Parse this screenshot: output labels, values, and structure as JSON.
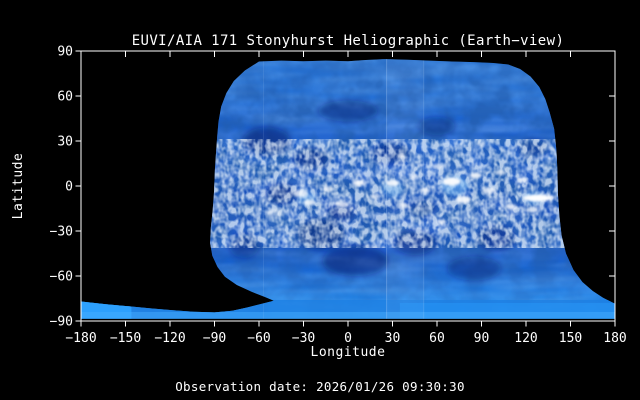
{
  "figure": {
    "title": "EUVI/AIA 171 Stonyhurst Heliographic (Earth−view)",
    "xlabel": "Longitude",
    "ylabel": "Latitude",
    "observation_date": "Observation date: 2026/01/26 09:30:30"
  },
  "colors": {
    "background": "#000000",
    "axis": "#ffffff",
    "text": "#ffffff",
    "map_base_blue": "#1a5ecd",
    "dark_blotch": "#041c6e",
    "bright_spot": "#ffffff",
    "glow": "#6db6f5",
    "speckle": "#e0f0ff",
    "streak": "#73b8ff",
    "south_band": "#1d80e4",
    "south_band_right": "#2694f5",
    "south_band_patch": "#2fa3ff",
    "south_band_bottom_row": "#49b0ff",
    "seam": "#c8e2ff"
  },
  "chart_data": {
    "type": "heatmap",
    "title": "EUVI/AIA 171 Stonyhurst Heliographic (Earth−view)",
    "xlabel": "Longitude",
    "ylabel": "Latitude",
    "xlim": [
      -180,
      180
    ],
    "ylim": [
      -90,
      90
    ],
    "x_ticks": [
      -180,
      -150,
      -120,
      -90,
      -60,
      -30,
      0,
      30,
      60,
      90,
      120,
      150,
      180
    ],
    "x_tick_labels": [
      "−180",
      "−150",
      "−120",
      "−90",
      "−60",
      "−30",
      "0",
      "30",
      "60",
      "90",
      "120",
      "150",
      "180"
    ],
    "y_ticks": [
      90,
      60,
      30,
      0,
      -30,
      -60,
      -90
    ],
    "y_tick_labels": [
      "90",
      "60",
      "30",
      "0",
      "−30",
      "−60",
      "−90"
    ],
    "observation_date": "2026/01/26 09:30:30",
    "description": "Blue-toned EUV 171 A synoptic intensity map of the solar corona in Stonyhurst heliographic coordinates; combined EUVI/AIA coverage spans roughly longitudes -90 to +142 deg at all latitudes plus a full-longitude south polar band below about -77 deg latitude; remaining corners are black (no data).",
    "coverage_outline_lonlat": [
      [
        -60,
        83
      ],
      [
        -45,
        83.6
      ],
      [
        -30,
        83.2
      ],
      [
        -15,
        83.6
      ],
      [
        0,
        83.2
      ],
      [
        12,
        84
      ],
      [
        25,
        84.6
      ],
      [
        40,
        84.2
      ],
      [
        55,
        83.6
      ],
      [
        70,
        83
      ],
      [
        85,
        82.6
      ],
      [
        98,
        82
      ],
      [
        108,
        81
      ],
      [
        116,
        78
      ],
      [
        123,
        73
      ],
      [
        129,
        66
      ],
      [
        133,
        58
      ],
      [
        136,
        49
      ],
      [
        139,
        38
      ],
      [
        140.5,
        24
      ],
      [
        141.2,
        10
      ],
      [
        141.5,
        -5
      ],
      [
        142.5,
        -20
      ],
      [
        144,
        -33
      ],
      [
        147,
        -45
      ],
      [
        152,
        -56
      ],
      [
        158,
        -64
      ],
      [
        165,
        -70
      ],
      [
        172,
        -74.5
      ],
      [
        178,
        -77.5
      ],
      [
        180,
        -78.5
      ],
      [
        180,
        -88.5
      ],
      [
        -180,
        -88.5
      ],
      [
        -180,
        -77
      ],
      [
        -163,
        -78.8
      ],
      [
        -148,
        -80.2
      ],
      [
        -133,
        -81.6
      ],
      [
        -118,
        -82.8
      ],
      [
        -104,
        -83.8
      ],
      [
        -90,
        -84.3
      ],
      [
        -78,
        -83.2
      ],
      [
        -68,
        -81
      ],
      [
        -58,
        -78.5
      ],
      [
        -50,
        -76.5
      ],
      [
        -56,
        -74
      ],
      [
        -65,
        -70.5
      ],
      [
        -75,
        -66
      ],
      [
        -83,
        -60.5
      ],
      [
        -88,
        -54
      ],
      [
        -91.5,
        -46.5
      ],
      [
        -93,
        -38
      ],
      [
        -92.5,
        -28
      ],
      [
        -91.2,
        -16
      ],
      [
        -90.3,
        -3
      ],
      [
        -89.8,
        10
      ],
      [
        -89,
        22
      ],
      [
        -88.2,
        33
      ],
      [
        -87.3,
        43
      ],
      [
        -85.5,
        53
      ],
      [
        -82,
        62
      ],
      [
        -77,
        70
      ],
      [
        -69.5,
        77
      ],
      [
        -60,
        83
      ]
    ],
    "seams": [
      {
        "lon": 26,
        "opacity": 0.28
      },
      {
        "lon": 51,
        "opacity": 0.18
      },
      {
        "lon": -57,
        "opacity": 0.1
      }
    ],
    "seam_strip": {
      "lon_from": 26,
      "lon_to": 51,
      "opacity": 0.06
    },
    "speckle_belt": {
      "lon": [
        -90,
        143
      ],
      "lat": [
        -38,
        28
      ]
    },
    "glow_regions": [
      {
        "lon": 72,
        "lat": 0,
        "rlon": 9,
        "rlat": 6.5,
        "opacity": 0.5
      },
      {
        "lon": 30,
        "lat": -2,
        "rlon": 7,
        "rlat": 5.5,
        "opacity": 0.4
      },
      {
        "lon": -28,
        "lat": -8,
        "rlon": 6.5,
        "rlat": 4.5,
        "opacity": 0.4
      },
      {
        "lon": 125,
        "lat": -8,
        "rlon": 6,
        "rlat": 4,
        "opacity": 0.5
      }
    ],
    "active_regions": [
      {
        "lon": -50,
        "lat": -18,
        "rlon": 5,
        "rlat": 2.5,
        "opacity": 0.45
      },
      {
        "lon": -32,
        "lat": -5,
        "rlon": 5,
        "rlat": 2.5,
        "opacity": 0.75
      },
      {
        "lon": -26,
        "lat": -11,
        "rlon": 4,
        "rlat": 2,
        "opacity": 0.8
      },
      {
        "lon": -13,
        "lat": -2,
        "rlon": 3.5,
        "rlat": 2,
        "opacity": 0.7
      },
      {
        "lon": -4,
        "lat": -12,
        "rlon": 4.5,
        "rlat": 2,
        "opacity": 0.75
      },
      {
        "lon": 7,
        "lat": 2,
        "rlon": 4,
        "rlat": 2,
        "opacity": 0.85
      },
      {
        "lon": 18,
        "lat": -7,
        "rlon": 3.5,
        "rlat": 2,
        "opacity": 0.7
      },
      {
        "lon": 30,
        "lat": 2,
        "rlon": 4.5,
        "rlat": 2.2,
        "opacity": 0.9
      },
      {
        "lon": 36,
        "lat": 20,
        "rlon": 3,
        "rlat": 1.6,
        "opacity": 0.6
      },
      {
        "lon": 37,
        "lat": -13,
        "rlon": 3.5,
        "rlat": 1.8,
        "opacity": 0.75
      },
      {
        "lon": 44,
        "lat": 6,
        "rlon": 3,
        "rlat": 1.5,
        "opacity": 0.6
      },
      {
        "lon": 52,
        "lat": -3,
        "rlon": 3.5,
        "rlat": 1.8,
        "opacity": 0.7
      },
      {
        "lon": 60,
        "lat": 13,
        "rlon": 3.5,
        "rlat": 1.8,
        "opacity": 0.65
      },
      {
        "lon": 63,
        "lat": -24,
        "rlon": 3.5,
        "rlat": 1.8,
        "opacity": 0.6
      },
      {
        "lon": 70,
        "lat": 3,
        "rlon": 6,
        "rlat": 2.8,
        "opacity": 0.95
      },
      {
        "lon": 78,
        "lat": -9,
        "rlon": 5,
        "rlat": 2.5,
        "opacity": 0.9
      },
      {
        "lon": 86,
        "lat": 7,
        "rlon": 4,
        "rlat": 2,
        "opacity": 0.85
      },
      {
        "lon": 90,
        "lat": 28,
        "rlon": 3,
        "rlat": 1.5,
        "opacity": 0.5
      },
      {
        "lon": 95,
        "lat": -3,
        "rlon": 4.5,
        "rlat": 2.2,
        "opacity": 0.8
      },
      {
        "lon": 103,
        "lat": 9,
        "rlon": 3.5,
        "rlat": 1.8,
        "opacity": 0.7
      },
      {
        "lon": 110,
        "lat": -14,
        "rlon": 4,
        "rlat": 2,
        "opacity": 0.75
      },
      {
        "lon": 118,
        "lat": 4,
        "rlon": 3.5,
        "rlat": 1.8,
        "opacity": 0.65
      },
      {
        "lon": 124,
        "lat": -16,
        "rlon": 4,
        "rlat": 1.8,
        "opacity": 0.7
      },
      {
        "lon": 128,
        "lat": -8,
        "rlon": 10,
        "rlat": 2.4,
        "opacity": 1.0
      },
      {
        "lon": 33,
        "lat": -30,
        "rlon": 3,
        "rlat": 1.5,
        "opacity": 0.5
      },
      {
        "lon": -40,
        "lat": 28,
        "rlon": 3,
        "rlat": 1.5,
        "opacity": 0.4
      }
    ],
    "dark_regions": [
      {
        "lon": -55,
        "lat": 30,
        "rlon": 16,
        "rlat": 9,
        "opacity": 0.5
      },
      {
        "lon": -25,
        "lat": 18,
        "rlon": 12,
        "rlat": 7,
        "opacity": 0.45
      },
      {
        "lon": -45,
        "lat": -5,
        "rlon": 10,
        "rlat": 6,
        "opacity": 0.5
      },
      {
        "lon": -18,
        "lat": -32,
        "rlon": 16,
        "rlat": 10,
        "opacity": 0.55
      },
      {
        "lon": 5,
        "lat": -50,
        "rlon": 22,
        "rlat": 10,
        "opacity": 0.5
      },
      {
        "lon": 45,
        "lat": -38,
        "rlon": 14,
        "rlat": 8,
        "opacity": 0.5
      },
      {
        "lon": 50,
        "lat": -15,
        "rlon": 8,
        "rlat": 5,
        "opacity": 0.35
      },
      {
        "lon": 28,
        "lat": 22,
        "rlon": 12,
        "rlat": 7,
        "opacity": 0.45
      },
      {
        "lon": 0,
        "lat": 50,
        "rlon": 20,
        "rlat": 7,
        "opacity": 0.4
      },
      {
        "lon": 60,
        "lat": 40,
        "rlon": 12,
        "rlat": 6,
        "opacity": 0.35
      },
      {
        "lon": 100,
        "lat": -35,
        "rlon": 12,
        "rlat": 8,
        "opacity": 0.45
      },
      {
        "lon": 85,
        "lat": -55,
        "rlon": 18,
        "rlat": 8,
        "opacity": 0.4
      },
      {
        "lon": -70,
        "lat": -40,
        "rlon": 10,
        "rlat": 8,
        "opacity": 0.4
      },
      {
        "lon": 125,
        "lat": 25,
        "rlon": 10,
        "rlat": 6,
        "opacity": 0.35
      },
      {
        "lon": -5,
        "lat": -18,
        "rlon": 9,
        "rlat": 5,
        "opacity": 0.5
      }
    ],
    "south_band": {
      "lat_top": -76,
      "lat_bottom": -88.5,
      "bright_patch_lon": [
        -180,
        -146
      ],
      "bright_patch_lat": [
        -77,
        -88.5
      ],
      "right_bright_lon": [
        35,
        180
      ],
      "bottom_row_lat": [
        -84,
        -88.5
      ]
    }
  }
}
